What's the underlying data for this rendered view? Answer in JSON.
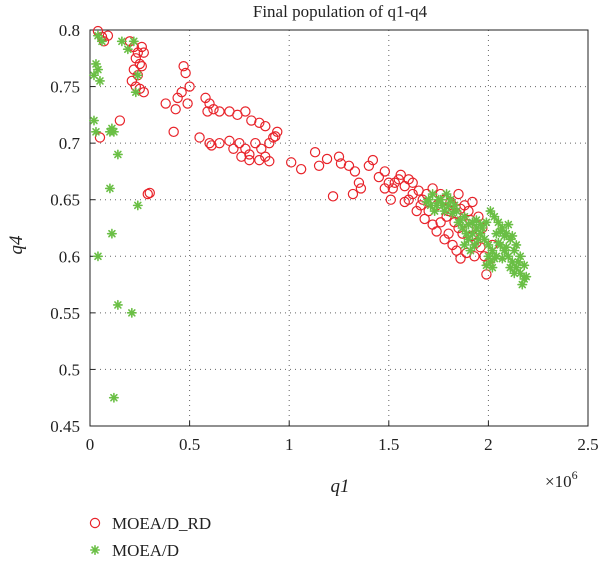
{
  "chart_data": {
    "type": "scatter",
    "title": "Final population of q1-q4",
    "xlabel": "q1",
    "ylabel": "q4",
    "x_multiplier_label": "×10^6",
    "xlim": [
      0,
      2.5
    ],
    "ylim": [
      0.45,
      0.8
    ],
    "xticks": [
      "0",
      "0.5",
      "1",
      "1.5",
      "2",
      "2.5"
    ],
    "yticks": [
      "0.45",
      "0.5",
      "0.55",
      "0.6",
      "0.65",
      "0.7",
      "0.75",
      "0.8"
    ],
    "grid": true,
    "legend_position": "bottom-left",
    "series": [
      {
        "name": "MOEA/D_RD",
        "marker": "circle",
        "color": "#e8232a",
        "points": [
          [
            0.04,
            0.799
          ],
          [
            0.06,
            0.794
          ],
          [
            0.07,
            0.79
          ],
          [
            0.09,
            0.795
          ],
          [
            0.05,
            0.705
          ],
          [
            0.2,
            0.79
          ],
          [
            0.22,
            0.785
          ],
          [
            0.24,
            0.78
          ],
          [
            0.26,
            0.785
          ],
          [
            0.27,
            0.78
          ],
          [
            0.23,
            0.775
          ],
          [
            0.25,
            0.77
          ],
          [
            0.22,
            0.765
          ],
          [
            0.26,
            0.768
          ],
          [
            0.24,
            0.76
          ],
          [
            0.21,
            0.755
          ],
          [
            0.23,
            0.75
          ],
          [
            0.25,
            0.748
          ],
          [
            0.27,
            0.745
          ],
          [
            0.15,
            0.72
          ],
          [
            0.29,
            0.655
          ],
          [
            0.3,
            0.656
          ],
          [
            0.47,
            0.768
          ],
          [
            0.48,
            0.762
          ],
          [
            0.5,
            0.75
          ],
          [
            0.46,
            0.745
          ],
          [
            0.44,
            0.74
          ],
          [
            0.43,
            0.73
          ],
          [
            0.49,
            0.735
          ],
          [
            0.38,
            0.735
          ],
          [
            0.42,
            0.71
          ],
          [
            0.58,
            0.74
          ],
          [
            0.6,
            0.735
          ],
          [
            0.59,
            0.728
          ],
          [
            0.62,
            0.73
          ],
          [
            0.65,
            0.728
          ],
          [
            0.7,
            0.728
          ],
          [
            0.74,
            0.725
          ],
          [
            0.78,
            0.728
          ],
          [
            0.81,
            0.72
          ],
          [
            0.85,
            0.718
          ],
          [
            0.88,
            0.715
          ],
          [
            0.55,
            0.705
          ],
          [
            0.6,
            0.7
          ],
          [
            0.61,
            0.698
          ],
          [
            0.65,
            0.7
          ],
          [
            0.7,
            0.702
          ],
          [
            0.72,
            0.695
          ],
          [
            0.75,
            0.7
          ],
          [
            0.78,
            0.695
          ],
          [
            0.8,
            0.69
          ],
          [
            0.83,
            0.7
          ],
          [
            0.86,
            0.695
          ],
          [
            0.9,
            0.7
          ],
          [
            0.92,
            0.705
          ],
          [
            0.94,
            0.71
          ],
          [
            0.93,
            0.706
          ],
          [
            0.85,
            0.685
          ],
          [
            0.88,
            0.688
          ],
          [
            0.9,
            0.684
          ],
          [
            0.8,
            0.685
          ],
          [
            0.76,
            0.688
          ],
          [
            1.01,
            0.683
          ],
          [
            1.06,
            0.677
          ],
          [
            1.13,
            0.692
          ],
          [
            1.15,
            0.68
          ],
          [
            1.19,
            0.686
          ],
          [
            1.22,
            0.653
          ],
          [
            1.25,
            0.688
          ],
          [
            1.26,
            0.682
          ],
          [
            1.3,
            0.68
          ],
          [
            1.33,
            0.675
          ],
          [
            1.35,
            0.665
          ],
          [
            1.4,
            0.68
          ],
          [
            1.42,
            0.685
          ],
          [
            1.45,
            0.67
          ],
          [
            1.48,
            0.675
          ],
          [
            1.5,
            0.665
          ],
          [
            1.52,
            0.66
          ],
          [
            1.55,
            0.668
          ],
          [
            1.58,
            0.662
          ],
          [
            1.6,
            0.668
          ],
          [
            1.62,
            0.665
          ],
          [
            1.36,
            0.66
          ],
          [
            1.32,
            0.655
          ],
          [
            1.48,
            0.66
          ],
          [
            1.51,
            0.65
          ],
          [
            1.53,
            0.665
          ],
          [
            1.56,
            0.672
          ],
          [
            1.65,
            0.658
          ],
          [
            1.67,
            0.65
          ],
          [
            1.69,
            0.655
          ],
          [
            1.72,
            0.66
          ],
          [
            1.74,
            0.645
          ],
          [
            1.76,
            0.655
          ],
          [
            1.78,
            0.65
          ],
          [
            1.8,
            0.64
          ],
          [
            1.82,
            0.645
          ],
          [
            1.84,
            0.638
          ],
          [
            1.86,
            0.642
          ],
          [
            1.88,
            0.63
          ],
          [
            1.85,
            0.625
          ],
          [
            1.83,
            0.63
          ],
          [
            1.87,
            0.62
          ],
          [
            1.9,
            0.625
          ],
          [
            1.92,
            0.618
          ],
          [
            1.94,
            0.612
          ],
          [
            1.96,
            0.608
          ],
          [
            1.98,
            0.6
          ],
          [
            2.0,
            0.594
          ],
          [
            1.99,
            0.584
          ],
          [
            1.8,
            0.62
          ],
          [
            1.76,
            0.63
          ],
          [
            1.78,
            0.615
          ],
          [
            1.82,
            0.61
          ],
          [
            1.84,
            0.605
          ],
          [
            1.86,
            0.598
          ],
          [
            1.89,
            0.603
          ],
          [
            1.93,
            0.6
          ],
          [
            1.7,
            0.64
          ],
          [
            1.68,
            0.633
          ],
          [
            1.72,
            0.628
          ],
          [
            1.74,
            0.622
          ],
          [
            1.64,
            0.64
          ],
          [
            1.66,
            0.645
          ],
          [
            1.6,
            0.65
          ],
          [
            1.62,
            0.655
          ],
          [
            1.58,
            0.648
          ],
          [
            1.85,
            0.655
          ],
          [
            1.9,
            0.64
          ],
          [
            1.92,
            0.648
          ],
          [
            1.95,
            0.635
          ],
          [
            1.97,
            0.625
          ],
          [
            2.02,
            0.61
          ],
          [
            1.88,
            0.645
          ],
          [
            1.81,
            0.648
          ],
          [
            1.79,
            0.635
          ],
          [
            1.91,
            0.632
          ]
        ]
      },
      {
        "name": "MOEA/D",
        "marker": "star",
        "color": "#6abf45",
        "points": [
          [
            0.02,
            0.76
          ],
          [
            0.03,
            0.77
          ],
          [
            0.04,
            0.765
          ],
          [
            0.05,
            0.755
          ],
          [
            0.02,
            0.72
          ],
          [
            0.03,
            0.71
          ],
          [
            0.04,
            0.6
          ],
          [
            0.1,
            0.71
          ],
          [
            0.11,
            0.713
          ],
          [
            0.12,
            0.71
          ],
          [
            0.14,
            0.69
          ],
          [
            0.1,
            0.66
          ],
          [
            0.11,
            0.62
          ],
          [
            0.14,
            0.557
          ],
          [
            0.21,
            0.55
          ],
          [
            0.12,
            0.475
          ],
          [
            0.24,
            0.645
          ],
          [
            0.23,
            0.745
          ],
          [
            0.24,
            0.76
          ],
          [
            0.22,
            0.79
          ],
          [
            0.16,
            0.79
          ],
          [
            0.19,
            0.783
          ],
          [
            0.06,
            0.79
          ],
          [
            0.04,
            0.795
          ],
          [
            1.7,
            0.65
          ],
          [
            1.72,
            0.655
          ],
          [
            1.74,
            0.645
          ],
          [
            1.76,
            0.65
          ],
          [
            1.78,
            0.64
          ],
          [
            1.8,
            0.645
          ],
          [
            1.82,
            0.638
          ],
          [
            1.84,
            0.64
          ],
          [
            1.86,
            0.632
          ],
          [
            1.88,
            0.635
          ],
          [
            1.9,
            0.628
          ],
          [
            1.92,
            0.63
          ],
          [
            1.94,
            0.625
          ],
          [
            1.96,
            0.62
          ],
          [
            1.98,
            0.615
          ],
          [
            2.0,
            0.61
          ],
          [
            2.02,
            0.605
          ],
          [
            2.04,
            0.6
          ],
          [
            2.06,
            0.61
          ],
          [
            2.08,
            0.605
          ],
          [
            2.1,
            0.6
          ],
          [
            2.12,
            0.595
          ],
          [
            2.14,
            0.59
          ],
          [
            2.16,
            0.585
          ],
          [
            2.18,
            0.58
          ],
          [
            2.17,
            0.575
          ],
          [
            2.15,
            0.595
          ],
          [
            2.13,
            0.605
          ],
          [
            2.11,
            0.615
          ],
          [
            2.09,
            0.62
          ],
          [
            2.07,
            0.625
          ],
          [
            2.05,
            0.63
          ],
          [
            2.03,
            0.635
          ],
          [
            2.01,
            0.64
          ],
          [
            1.99,
            0.63
          ],
          [
            1.97,
            0.625
          ],
          [
            1.95,
            0.615
          ],
          [
            1.93,
            0.61
          ],
          [
            1.91,
            0.605
          ],
          [
            1.89,
            0.62
          ],
          [
            1.87,
            0.625
          ],
          [
            1.85,
            0.63
          ],
          [
            1.83,
            0.645
          ],
          [
            1.81,
            0.65
          ],
          [
            1.79,
            0.655
          ],
          [
            1.77,
            0.645
          ],
          [
            1.75,
            0.65
          ],
          [
            1.73,
            0.64
          ],
          [
            1.71,
            0.645
          ],
          [
            1.69,
            0.648
          ],
          [
            2.0,
            0.6
          ],
          [
            2.01,
            0.595
          ],
          [
            2.02,
            0.59
          ],
          [
            1.99,
            0.592
          ],
          [
            2.03,
            0.598
          ],
          [
            2.05,
            0.612
          ],
          [
            2.07,
            0.598
          ],
          [
            2.09,
            0.608
          ],
          [
            2.11,
            0.59
          ],
          [
            2.13,
            0.585
          ],
          [
            2.16,
            0.6
          ],
          [
            2.14,
            0.61
          ],
          [
            2.12,
            0.618
          ],
          [
            2.1,
            0.628
          ],
          [
            2.08,
            0.618
          ],
          [
            2.06,
            0.622
          ],
          [
            2.04,
            0.62
          ],
          [
            1.96,
            0.628
          ],
          [
            1.94,
            0.632
          ],
          [
            1.92,
            0.62
          ],
          [
            1.9,
            0.615
          ],
          [
            1.88,
            0.61
          ],
          [
            2.19,
            0.582
          ],
          [
            2.18,
            0.592
          ]
        ]
      }
    ]
  }
}
